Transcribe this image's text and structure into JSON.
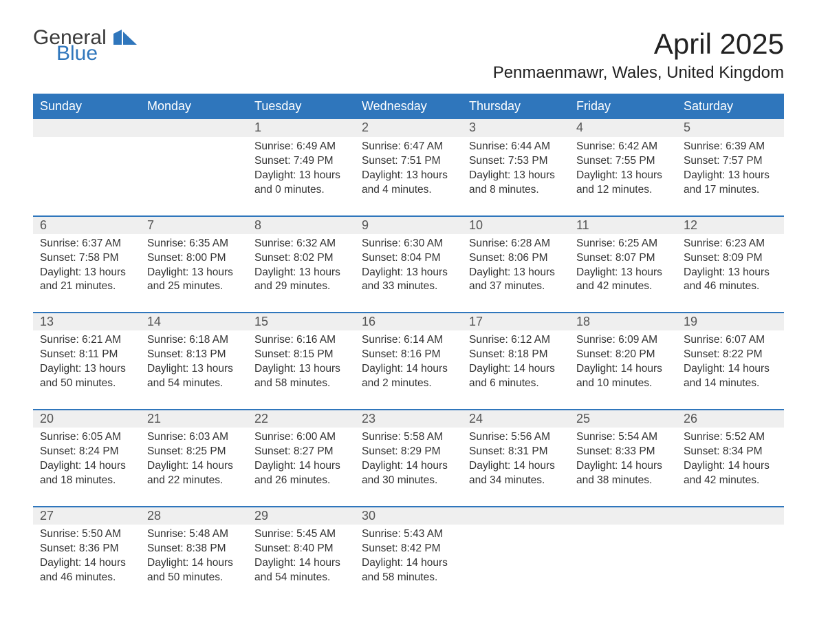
{
  "brand": {
    "line1": "General",
    "line2": "Blue",
    "accent_color": "#2f76bc"
  },
  "title": "April 2025",
  "location": "Penmaenmawr, Wales, United Kingdom",
  "colors": {
    "header_bg": "#2f76bc",
    "header_text": "#ffffff",
    "daynum_bg": "#efefef",
    "body_text": "#333333",
    "page_bg": "#ffffff"
  },
  "fonts": {
    "title_size_pt": 32,
    "location_size_pt": 18,
    "header_size_pt": 14,
    "cell_size_pt": 12
  },
  "day_labels": [
    "Sunday",
    "Monday",
    "Tuesday",
    "Wednesday",
    "Thursday",
    "Friday",
    "Saturday"
  ],
  "weeks": [
    [
      null,
      null,
      {
        "n": "1",
        "sunrise": "6:49 AM",
        "sunset": "7:49 PM",
        "daylight": "13 hours and 0 minutes."
      },
      {
        "n": "2",
        "sunrise": "6:47 AM",
        "sunset": "7:51 PM",
        "daylight": "13 hours and 4 minutes."
      },
      {
        "n": "3",
        "sunrise": "6:44 AM",
        "sunset": "7:53 PM",
        "daylight": "13 hours and 8 minutes."
      },
      {
        "n": "4",
        "sunrise": "6:42 AM",
        "sunset": "7:55 PM",
        "daylight": "13 hours and 12 minutes."
      },
      {
        "n": "5",
        "sunrise": "6:39 AM",
        "sunset": "7:57 PM",
        "daylight": "13 hours and 17 minutes."
      }
    ],
    [
      {
        "n": "6",
        "sunrise": "6:37 AM",
        "sunset": "7:58 PM",
        "daylight": "13 hours and 21 minutes."
      },
      {
        "n": "7",
        "sunrise": "6:35 AM",
        "sunset": "8:00 PM",
        "daylight": "13 hours and 25 minutes."
      },
      {
        "n": "8",
        "sunrise": "6:32 AM",
        "sunset": "8:02 PM",
        "daylight": "13 hours and 29 minutes."
      },
      {
        "n": "9",
        "sunrise": "6:30 AM",
        "sunset": "8:04 PM",
        "daylight": "13 hours and 33 minutes."
      },
      {
        "n": "10",
        "sunrise": "6:28 AM",
        "sunset": "8:06 PM",
        "daylight": "13 hours and 37 minutes."
      },
      {
        "n": "11",
        "sunrise": "6:25 AM",
        "sunset": "8:07 PM",
        "daylight": "13 hours and 42 minutes."
      },
      {
        "n": "12",
        "sunrise": "6:23 AM",
        "sunset": "8:09 PM",
        "daylight": "13 hours and 46 minutes."
      }
    ],
    [
      {
        "n": "13",
        "sunrise": "6:21 AM",
        "sunset": "8:11 PM",
        "daylight": "13 hours and 50 minutes."
      },
      {
        "n": "14",
        "sunrise": "6:18 AM",
        "sunset": "8:13 PM",
        "daylight": "13 hours and 54 minutes."
      },
      {
        "n": "15",
        "sunrise": "6:16 AM",
        "sunset": "8:15 PM",
        "daylight": "13 hours and 58 minutes."
      },
      {
        "n": "16",
        "sunrise": "6:14 AM",
        "sunset": "8:16 PM",
        "daylight": "14 hours and 2 minutes."
      },
      {
        "n": "17",
        "sunrise": "6:12 AM",
        "sunset": "8:18 PM",
        "daylight": "14 hours and 6 minutes."
      },
      {
        "n": "18",
        "sunrise": "6:09 AM",
        "sunset": "8:20 PM",
        "daylight": "14 hours and 10 minutes."
      },
      {
        "n": "19",
        "sunrise": "6:07 AM",
        "sunset": "8:22 PM",
        "daylight": "14 hours and 14 minutes."
      }
    ],
    [
      {
        "n": "20",
        "sunrise": "6:05 AM",
        "sunset": "8:24 PM",
        "daylight": "14 hours and 18 minutes."
      },
      {
        "n": "21",
        "sunrise": "6:03 AM",
        "sunset": "8:25 PM",
        "daylight": "14 hours and 22 minutes."
      },
      {
        "n": "22",
        "sunrise": "6:00 AM",
        "sunset": "8:27 PM",
        "daylight": "14 hours and 26 minutes."
      },
      {
        "n": "23",
        "sunrise": "5:58 AM",
        "sunset": "8:29 PM",
        "daylight": "14 hours and 30 minutes."
      },
      {
        "n": "24",
        "sunrise": "5:56 AM",
        "sunset": "8:31 PM",
        "daylight": "14 hours and 34 minutes."
      },
      {
        "n": "25",
        "sunrise": "5:54 AM",
        "sunset": "8:33 PM",
        "daylight": "14 hours and 38 minutes."
      },
      {
        "n": "26",
        "sunrise": "5:52 AM",
        "sunset": "8:34 PM",
        "daylight": "14 hours and 42 minutes."
      }
    ],
    [
      {
        "n": "27",
        "sunrise": "5:50 AM",
        "sunset": "8:36 PM",
        "daylight": "14 hours and 46 minutes."
      },
      {
        "n": "28",
        "sunrise": "5:48 AM",
        "sunset": "8:38 PM",
        "daylight": "14 hours and 50 minutes."
      },
      {
        "n": "29",
        "sunrise": "5:45 AM",
        "sunset": "8:40 PM",
        "daylight": "14 hours and 54 minutes."
      },
      {
        "n": "30",
        "sunrise": "5:43 AM",
        "sunset": "8:42 PM",
        "daylight": "14 hours and 58 minutes."
      },
      null,
      null,
      null
    ]
  ],
  "labels": {
    "sunrise": "Sunrise: ",
    "sunset": "Sunset: ",
    "daylight": "Daylight: "
  }
}
